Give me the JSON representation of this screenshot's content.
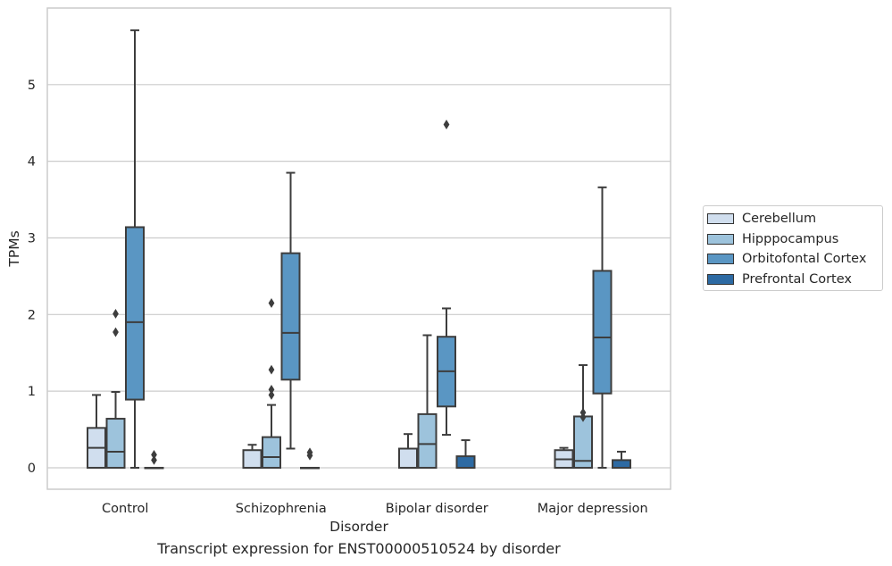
{
  "chart_data": {
    "type": "boxplot",
    "xlabel": "Disorder",
    "ylabel": "TPMs",
    "caption": "Transcript expression for ENST00000510524 by disorder",
    "ylim": [
      -0.28,
      6.0
    ],
    "yticks": [
      0,
      1,
      2,
      3,
      4,
      5
    ],
    "grid": "horizontal",
    "legend_position": "right",
    "categories": [
      "Control",
      "Schizophrenia",
      "Bipolar disorder",
      "Major depression"
    ],
    "series": [
      {
        "name": "Cerebellum",
        "color": "#d0deee",
        "boxes": [
          {
            "whislo": 0,
            "q1": 0,
            "med": 0.26,
            "q3": 0.52,
            "whishi": 0.95,
            "fliers": []
          },
          {
            "whislo": 0,
            "q1": 0,
            "med": 0,
            "q3": 0.23,
            "whishi": 0.3,
            "fliers": []
          },
          {
            "whislo": 0,
            "q1": 0,
            "med": 0,
            "q3": 0.25,
            "whishi": 0.44,
            "fliers": []
          },
          {
            "whislo": 0,
            "q1": 0,
            "med": 0.11,
            "q3": 0.23,
            "whishi": 0.26,
            "fliers": []
          }
        ]
      },
      {
        "name": "Hipppocampus",
        "color": "#9dc3dc",
        "boxes": [
          {
            "whislo": 0,
            "q1": 0,
            "med": 0.21,
            "q3": 0.64,
            "whishi": 0.99,
            "fliers": [
              1.77,
              2.01
            ]
          },
          {
            "whislo": 0,
            "q1": 0,
            "med": 0.14,
            "q3": 0.4,
            "whishi": 0.82,
            "fliers": [
              0.95,
              1.02,
              1.28,
              2.15
            ]
          },
          {
            "whislo": 0,
            "q1": 0,
            "med": 0.31,
            "q3": 0.7,
            "whishi": 1.73,
            "fliers": []
          },
          {
            "whislo": 0,
            "q1": 0,
            "med": 0.09,
            "q3": 0.67,
            "whishi": 1.34,
            "fliers": [
              0.66,
              0.72
            ]
          }
        ]
      },
      {
        "name": "Orbitofontal Cortex",
        "color": "#5a96c3",
        "boxes": [
          {
            "whislo": 0,
            "q1": 0.89,
            "med": 1.9,
            "q3": 3.14,
            "whishi": 5.71,
            "fliers": []
          },
          {
            "whislo": 0.25,
            "q1": 1.15,
            "med": 1.76,
            "q3": 2.8,
            "whishi": 3.85,
            "fliers": []
          },
          {
            "whislo": 0.43,
            "q1": 0.8,
            "med": 1.26,
            "q3": 1.71,
            "whishi": 2.08,
            "fliers": [
              4.48
            ]
          },
          {
            "whislo": 0,
            "q1": 0.97,
            "med": 1.7,
            "q3": 2.57,
            "whishi": 3.66,
            "fliers": []
          }
        ]
      },
      {
        "name": "Prefrontal Cortex",
        "color": "#2d6aa3",
        "boxes": [
          {
            "whislo": 0,
            "q1": 0,
            "med": 0,
            "q3": 0,
            "whishi": 0,
            "fliers": [
              0.1,
              0.17
            ]
          },
          {
            "whislo": 0,
            "q1": 0,
            "med": 0,
            "q3": 0,
            "whishi": 0,
            "fliers": [
              0.16,
              0.2
            ]
          },
          {
            "whislo": 0,
            "q1": 0,
            "med": 0,
            "q3": 0.15,
            "whishi": 0.36,
            "fliers": []
          },
          {
            "whislo": 0,
            "q1": 0,
            "med": 0,
            "q3": 0.1,
            "whishi": 0.21,
            "fliers": []
          }
        ]
      }
    ]
  }
}
